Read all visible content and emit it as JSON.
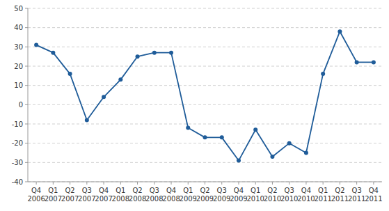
{
  "chart_data": {
    "type": "line",
    "categories": [
      "Q4\n2006",
      "Q1\n2007",
      "Q2\n2007",
      "Q3\n2007",
      "Q4\n2007",
      "Q1\n2008",
      "Q2\n2008",
      "Q3\n2008",
      "Q4\n2008",
      "Q1\n2009",
      "Q2\n2009",
      "Q3\n2009",
      "Q4\n2009",
      "Q1\n2010",
      "Q2\n2010",
      "Q3\n2010",
      "Q4\n2010",
      "Q1\n2011",
      "Q2\n2011",
      "Q3\n2011",
      "Q4\n2011"
    ],
    "values": [
      31,
      27,
      16,
      -8,
      4,
      13,
      25,
      27,
      27,
      -12,
      -17,
      -17,
      -29,
      -13,
      -27,
      -20,
      -25,
      16,
      38,
      22,
      22
    ],
    "color": "#1F5C99",
    "marker": "circle",
    "ylim": [
      -40,
      50
    ],
    "yticks": [
      -40,
      -30,
      -20,
      -10,
      0,
      10,
      20,
      30,
      40,
      50
    ],
    "grid": true
  }
}
